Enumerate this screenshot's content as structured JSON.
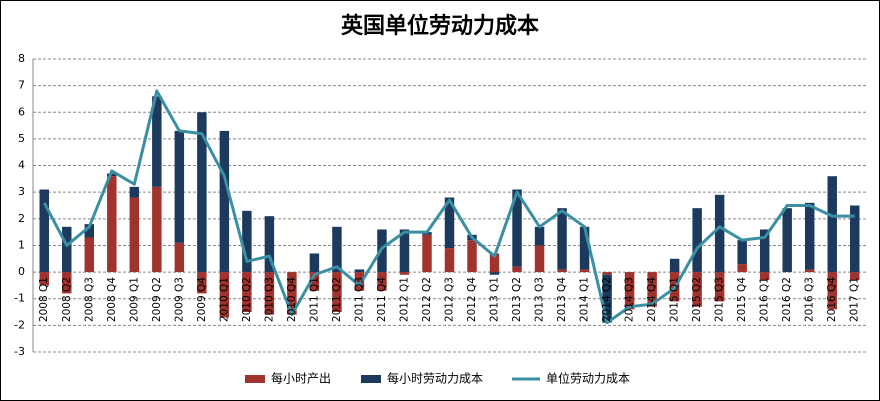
{
  "chart_data": {
    "type": "bar_line",
    "title": "英国单位劳动力成本",
    "categories": [
      "2008 Q1",
      "2008 Q2",
      "2008 Q3",
      "2008 Q4",
      "2009 Q1",
      "2009 Q2",
      "2009 Q3",
      "2009 Q4",
      "2010 Q1",
      "2010 Q2",
      "2010 Q3",
      "2010 Q4",
      "2011 Q1",
      "2011 Q2",
      "2011 Q3",
      "2011 Q4",
      "2012 Q1",
      "2012 Q2",
      "2012 Q3",
      "2012 Q4",
      "2013 Q1",
      "2013 Q2",
      "2013 Q3",
      "2013 Q4",
      "2014 Q1",
      "2014 Q2",
      "2014 Q3",
      "2014 Q4",
      "2015 Q1",
      "2015 Q2",
      "2015 Q3",
      "2015 Q4",
      "2016 Q1",
      "2016 Q2",
      "2016 Q3",
      "2016 Q4",
      "2017 Q1"
    ],
    "series": [
      {
        "name": "每小时产出",
        "type": "bar",
        "color": "#a0332e",
        "values": [
          -0.5,
          -0.8,
          1.3,
          3.6,
          2.8,
          3.2,
          1.1,
          -0.8,
          -1.7,
          -1.5,
          -1.6,
          -1.6,
          -0.7,
          -1.5,
          -0.7,
          -0.7,
          -0.1,
          1.4,
          0.9,
          1.2,
          0.7,
          0.2,
          1.0,
          0.1,
          0.1,
          -0.1,
          -1.4,
          -1.3,
          -1.1,
          -1.3,
          -1.1,
          0.3,
          -0.3,
          0,
          0.1,
          -1.4,
          -0.3
        ]
      },
      {
        "name": "每小时劳动力成本",
        "type": "bar",
        "color": "#1b3a5e",
        "values": [
          3.1,
          1.7,
          0.5,
          0.1,
          0.4,
          3.4,
          4.2,
          6.0,
          5.3,
          2.3,
          2.1,
          0,
          0.7,
          1.7,
          0.1,
          1.6,
          1.6,
          0.1,
          1.9,
          0.2,
          -0.1,
          2.9,
          0.7,
          2.3,
          1.6,
          -1.8,
          0,
          0,
          0.5,
          2.4,
          2.9,
          0.9,
          1.6,
          2.4,
          2.5,
          3.6,
          2.5
        ]
      },
      {
        "name": "单位劳动力成本",
        "type": "line",
        "color": "#3a8fa3",
        "values": [
          2.6,
          1.0,
          1.7,
          3.8,
          3.3,
          6.8,
          5.3,
          5.2,
          3.6,
          0.4,
          0.6,
          -1.6,
          -0.1,
          0.2,
          -0.5,
          0.9,
          1.5,
          1.5,
          2.7,
          1.3,
          0.6,
          3.0,
          1.7,
          2.3,
          1.7,
          -1.9,
          -1.3,
          -1.2,
          -0.6,
          0.9,
          1.7,
          1.2,
          1.3,
          2.5,
          2.5,
          2.1,
          2.1
        ]
      }
    ],
    "ylim": [
      -3,
      8
    ],
    "yticks": [
      -3,
      -2,
      -1,
      0,
      1,
      2,
      3,
      4,
      5,
      6,
      7,
      8
    ],
    "grid": true,
    "legend": "bottom"
  }
}
